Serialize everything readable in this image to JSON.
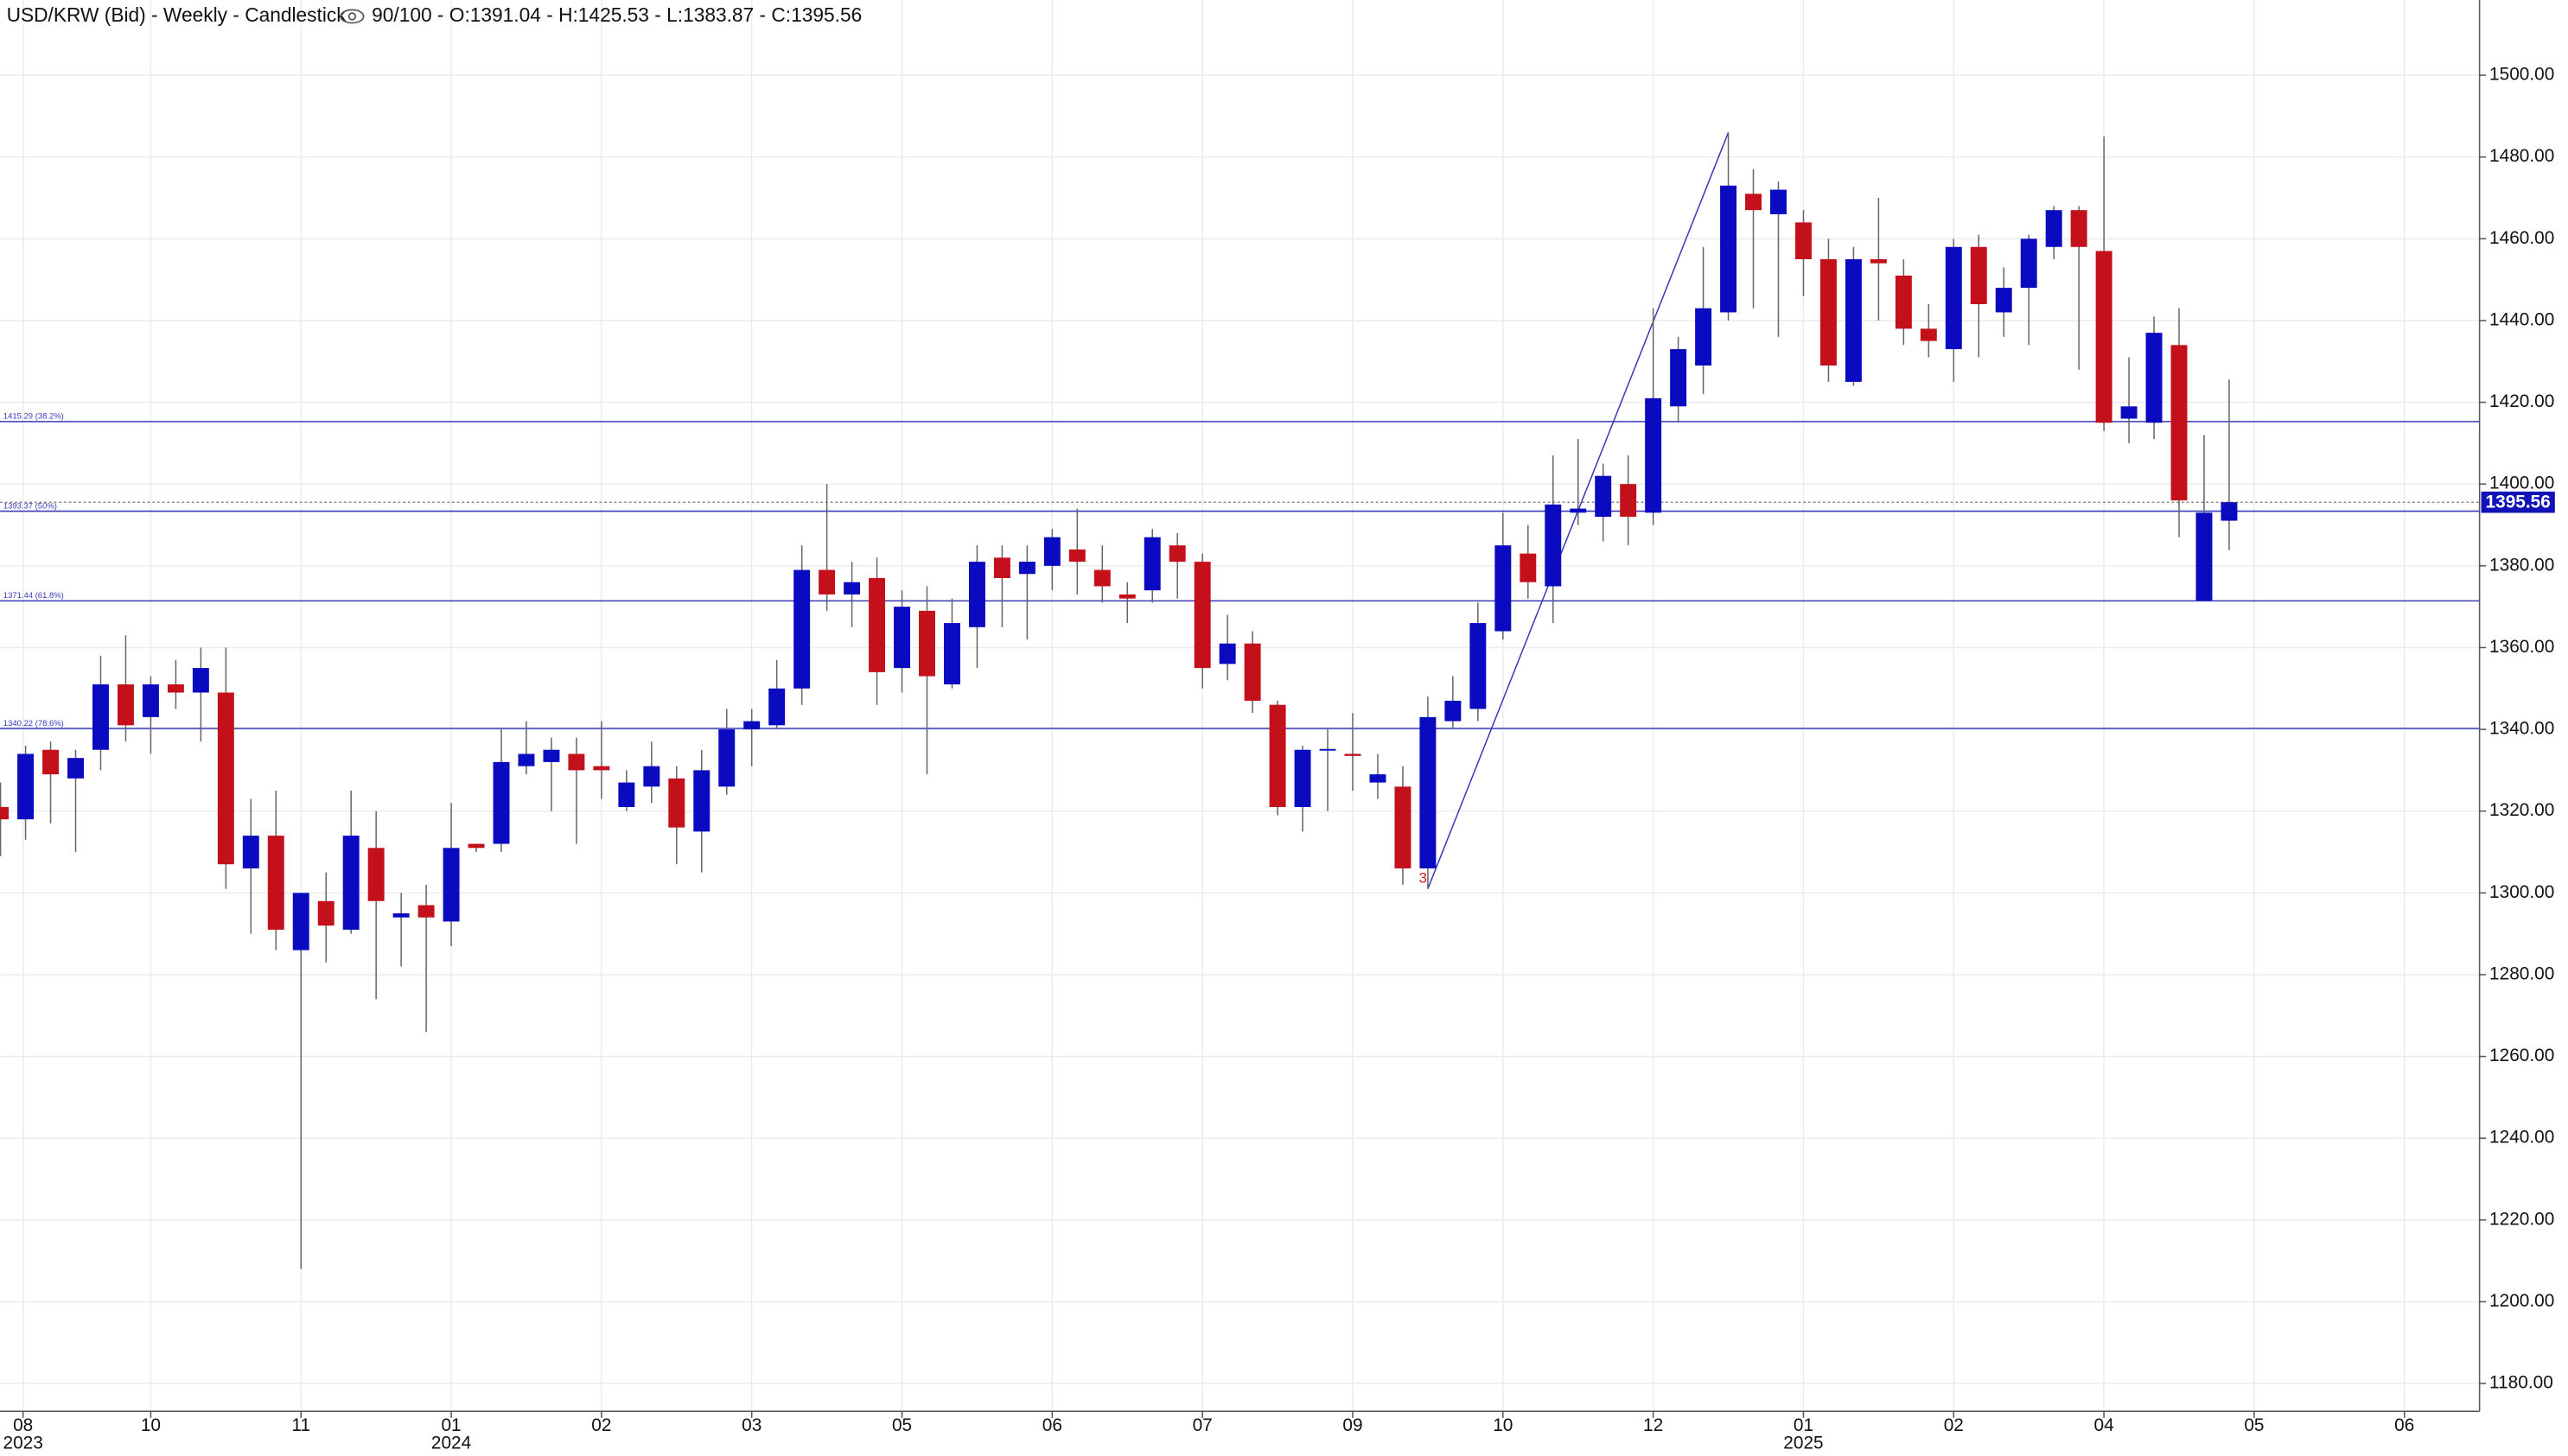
{
  "chart_data": {
    "type": "candlestick",
    "title": "USD/KRW (Bid) - Weekly - Candlestick",
    "header_stats": "90/100 - O:1391.04 - H:1425.53 - L:1383.87 - C:1395.56",
    "up_color": "#0a0ac0",
    "down_color": "#c4101a",
    "open": [
      1321,
      1318,
      1335,
      1328,
      1335,
      1351,
      1343,
      1351,
      1349,
      1349,
      1306,
      1314,
      1286,
      1298,
      1291,
      1311,
      1294,
      1297,
      1293,
      1312,
      1312,
      1331,
      1332,
      1334,
      1331,
      1321,
      1326,
      1328,
      1315,
      1326,
      1340,
      1341,
      1350,
      1379,
      1373,
      1377,
      1355,
      1369,
      1351,
      1365,
      1382,
      1378,
      1380,
      1384,
      1379,
      1373,
      1374,
      1385,
      1381,
      1356,
      1361,
      1346,
      1321,
      1334.8,
      1334,
      1327,
      1326,
      1306,
      1342,
      1345,
      1364,
      1383,
      1375,
      1393,
      1392,
      1400,
      1393,
      1419,
      1429,
      1442,
      1471,
      1466,
      1464,
      1455,
      1425,
      1455,
      1451,
      1438,
      1433,
      1458,
      1442,
      1448,
      1458,
      1467,
      1457,
      1416,
      1415,
      1434,
      1371.5,
      1391.04
    ],
    "high": [
      1327,
      1336,
      1337,
      1335,
      1358,
      1363,
      1353,
      1357,
      1360,
      1360,
      1323,
      1325,
      1300,
      1305,
      1325,
      1320,
      1300,
      1302,
      1322,
      1312,
      1340,
      1342,
      1338,
      1338,
      1342,
      1330,
      1337,
      1331,
      1335,
      1345,
      1345,
      1357,
      1385,
      1400,
      1381,
      1382,
      1374,
      1375,
      1372,
      1385,
      1385,
      1385,
      1389,
      1394,
      1385,
      1376,
      1389,
      1388,
      1383,
      1368,
      1364,
      1347,
      1336,
      1340,
      1344,
      1334,
      1331,
      1348,
      1353,
      1371,
      1393,
      1390,
      1407,
      1411,
      1405,
      1407,
      1443,
      1436,
      1458,
      1486,
      1477,
      1474,
      1467,
      1460,
      1458,
      1470,
      1455,
      1444,
      1460,
      1461,
      1453,
      1461,
      1468,
      1468,
      1485,
      1431,
      1441,
      1443,
      1412,
      1425.53
    ],
    "low": [
      1309,
      1313,
      1317,
      1310,
      1330,
      1337,
      1334,
      1345,
      1337,
      1301,
      1290,
      1286,
      1208,
      1283,
      1290,
      1274,
      1282,
      1266,
      1287,
      1310,
      1310,
      1329,
      1320,
      1312,
      1323,
      1320,
      1322,
      1307,
      1305,
      1324,
      1331,
      1340,
      1346,
      1369,
      1365,
      1346,
      1349,
      1329,
      1350,
      1355,
      1365,
      1362,
      1374,
      1373,
      1371,
      1366,
      1371,
      1372,
      1350,
      1352,
      1344,
      1319,
      1315,
      1320,
      1325,
      1323,
      1302,
      1301,
      1340,
      1342,
      1362,
      1372,
      1366,
      1390,
      1386,
      1385,
      1390,
      1415,
      1422,
      1440,
      1443,
      1436,
      1446,
      1425,
      1424,
      1440,
      1434,
      1431,
      1425,
      1431,
      1436,
      1434,
      1455,
      1428,
      1413,
      1410,
      1411,
      1387,
      1371.5,
      1383.87
    ],
    "close": [
      1318,
      1334,
      1329,
      1333,
      1351,
      1341,
      1351,
      1349,
      1355,
      1307,
      1314,
      1291,
      1300,
      1292,
      1314,
      1298,
      1295,
      1294,
      1311,
      1311,
      1332,
      1334,
      1335,
      1330,
      1330,
      1327,
      1331,
      1316,
      1330,
      1340,
      1342,
      1350,
      1379,
      1373,
      1376,
      1354,
      1370,
      1353,
      1366,
      1381,
      1377,
      1381,
      1387,
      1381,
      1375,
      1372,
      1387,
      1381,
      1355,
      1361,
      1347,
      1321,
      1335,
      1335.2,
      1333.5,
      1329,
      1306,
      1343,
      1347,
      1366,
      1385,
      1376,
      1395,
      1394,
      1402,
      1392,
      1421,
      1433,
      1443,
      1473,
      1467,
      1472,
      1455,
      1429,
      1455,
      1454,
      1438,
      1435,
      1458,
      1444,
      1448,
      1460,
      1467,
      1458,
      1415,
      1419,
      1437,
      1396,
      1393,
      1395.56
    ],
    "ylim": [
      1173.2,
      1518.4
    ],
    "yticks": [
      {
        "value": 1180,
        "label": "1180.00"
      },
      {
        "value": 1200,
        "label": "1200.00"
      },
      {
        "value": 1220,
        "label": "1220.00"
      },
      {
        "value": 1240,
        "label": "1240.00"
      },
      {
        "value": 1260,
        "label": "1260.00"
      },
      {
        "value": 1280,
        "label": "1280.00"
      },
      {
        "value": 1300,
        "label": "1300.00"
      },
      {
        "value": 1320,
        "label": "1320.00"
      },
      {
        "value": 1340,
        "label": "1340.00"
      },
      {
        "value": 1360,
        "label": "1360.00"
      },
      {
        "value": 1380,
        "label": "1380.00"
      },
      {
        "value": 1400,
        "label": "1400.00"
      },
      {
        "value": 1420,
        "label": "1420.00"
      },
      {
        "value": 1440,
        "label": "1440.00"
      },
      {
        "value": 1460,
        "label": "1460.00"
      },
      {
        "value": 1480,
        "label": "1480.00"
      },
      {
        "value": 1500,
        "label": "1500.00"
      }
    ],
    "xlim": [
      -0.02,
      99
    ],
    "xticks": [
      {
        "value": 0.9,
        "label": "08"
      },
      {
        "value": 6,
        "label": "10"
      },
      {
        "value": 12,
        "label": "11"
      },
      {
        "value": 18,
        "label": "01"
      },
      {
        "value": 24,
        "label": "02"
      },
      {
        "value": 30,
        "label": "03"
      },
      {
        "value": 36,
        "label": "05"
      },
      {
        "value": 42,
        "label": "06"
      },
      {
        "value": 48,
        "label": "07"
      },
      {
        "value": 54,
        "label": "09"
      },
      {
        "value": 60,
        "label": "10"
      },
      {
        "value": 66,
        "label": "12"
      },
      {
        "value": 72,
        "label": "01"
      },
      {
        "value": 78,
        "label": "02"
      },
      {
        "value": 84,
        "label": "04"
      },
      {
        "value": 90,
        "label": "05"
      },
      {
        "value": 96,
        "label": "06"
      }
    ],
    "year_labels": [
      {
        "value": 0.9,
        "label": "2023"
      },
      {
        "value": 18,
        "label": "2024"
      },
      {
        "value": 72,
        "label": "2025"
      }
    ],
    "fib_levels": [
      {
        "value": 1415.29,
        "label": "1415.29 (38.2%)"
      },
      {
        "value": 1393.37,
        "label": "1393.37 (50%)"
      },
      {
        "value": 1371.44,
        "label": "1371.44 (61.8%)"
      },
      {
        "value": 1340.22,
        "label": "1340.22 (78.6%)"
      }
    ],
    "last_price": {
      "value": 1395.56,
      "label": "1395.56"
    },
    "marker_label": "3",
    "grid": true
  }
}
